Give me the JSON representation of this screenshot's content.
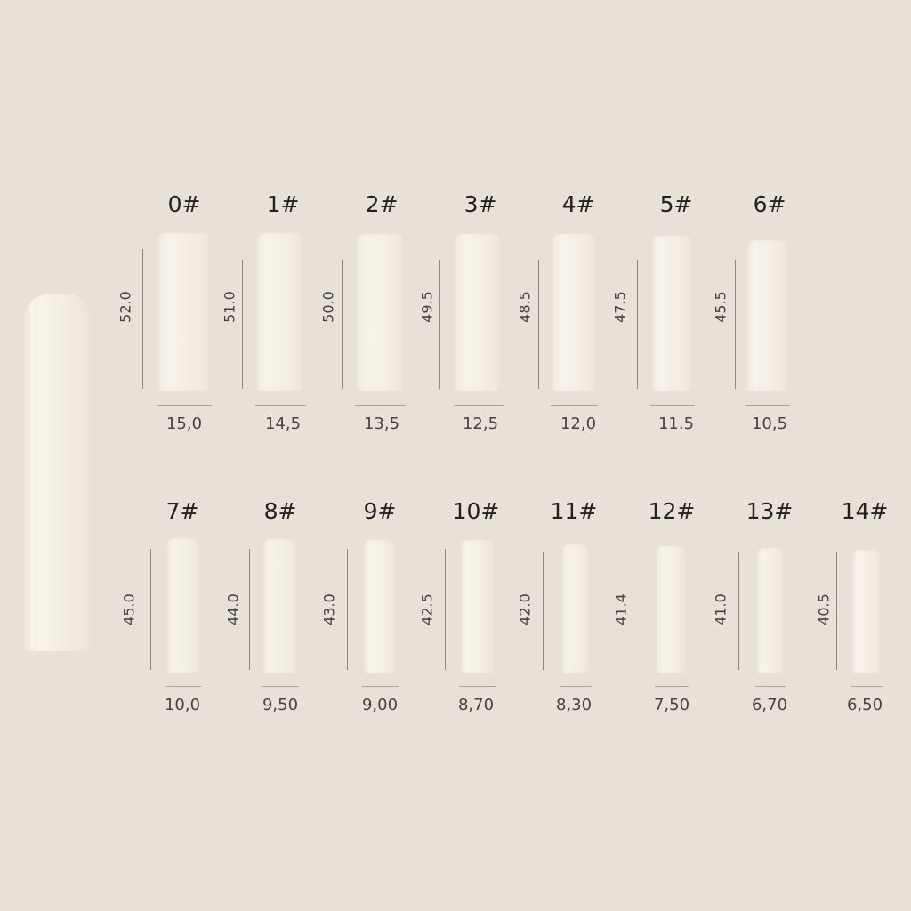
{
  "colors": {
    "background": "#e8e1d8",
    "tip": "#f5f0e6",
    "line": "#8a8580"
  },
  "side_view": {
    "icon": "nail-tip-side-view"
  },
  "rows": [
    {
      "tips": [
        {
          "size": "0#",
          "length": "52.0",
          "width": "15,0"
        },
        {
          "size": "1#",
          "length": "51.0",
          "width": "14,5"
        },
        {
          "size": "2#",
          "length": "50.0",
          "width": "13,5"
        },
        {
          "size": "3#",
          "length": "49.5",
          "width": "12,5"
        },
        {
          "size": "4#",
          "length": "48.5",
          "width": "12,0"
        },
        {
          "size": "5#",
          "length": "47.5",
          "width": "11.5"
        },
        {
          "size": "6#",
          "length": "45.5",
          "width": "10,5"
        }
      ]
    },
    {
      "tips": [
        {
          "size": "7#",
          "length": "45.0",
          "width": "10,0"
        },
        {
          "size": "8#",
          "length": "44.0",
          "width": "9,50"
        },
        {
          "size": "9#",
          "length": "43.0",
          "width": "9,00"
        },
        {
          "size": "10#",
          "length": "42.5",
          "width": "8,70"
        },
        {
          "size": "11#",
          "length": "42.0",
          "width": "8,30"
        },
        {
          "size": "12#",
          "length": "41.4",
          "width": "7,50"
        },
        {
          "size": "13#",
          "length": "41.0",
          "width": "6,70"
        },
        {
          "size": "14#",
          "length": "40.5",
          "width": "6,50"
        }
      ]
    }
  ]
}
